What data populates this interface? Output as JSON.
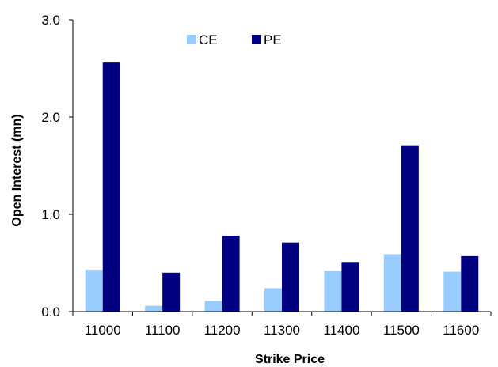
{
  "chart_data": {
    "type": "bar",
    "title": "",
    "xlabel": "Strike Price",
    "ylabel": "Open Interest (mn)",
    "categories": [
      "11000",
      "11100",
      "11200",
      "11300",
      "11400",
      "11500",
      "11600"
    ],
    "series": [
      {
        "name": "CE",
        "color": "#99CCFF",
        "values": [
          0.43,
          0.06,
          0.11,
          0.24,
          0.42,
          0.59,
          0.41
        ]
      },
      {
        "name": "PE",
        "color": "#000080",
        "values": [
          2.56,
          0.4,
          0.78,
          0.71,
          0.51,
          1.71,
          0.57
        ]
      }
    ],
    "ylim": [
      0,
      3.0
    ],
    "yticks": [
      "0.0",
      "1.0",
      "2.0",
      "3.0"
    ],
    "grid": false,
    "legend_position": "top-center"
  }
}
